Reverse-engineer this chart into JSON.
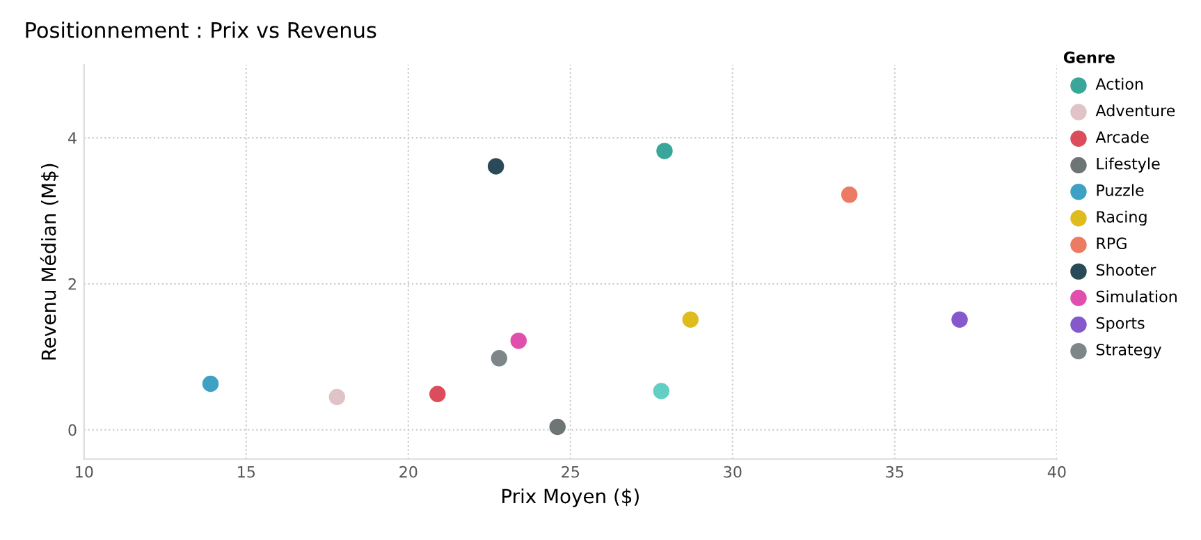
{
  "chart_data": {
    "type": "scatter",
    "title": "Positionnement : Prix vs Revenus",
    "xlabel": "Prix Moyen ($)",
    "ylabel": "Revenu Médian (M$)",
    "legend_title": "Genre",
    "xlim": [
      10,
      40
    ],
    "xticks": [
      10,
      15,
      20,
      25,
      30,
      35,
      40
    ],
    "ylim": [
      -0.4,
      5
    ],
    "yticks": [
      0,
      2,
      4
    ],
    "grid": true,
    "legend": "right",
    "marker": "circle",
    "series": [
      {
        "name": "Action",
        "color": "#3aa69a",
        "x": [
          27.9
        ],
        "values": [
          3.82
        ]
      },
      {
        "name": "Adventure",
        "color": "#e0c3c6",
        "x": [
          17.8
        ],
        "values": [
          0.45
        ]
      },
      {
        "name": "Arcade",
        "color": "#dc4d5c",
        "x": [
          20.9
        ],
        "values": [
          0.49
        ]
      },
      {
        "name": "Lifestyle",
        "color": "#6e7575",
        "x": [
          24.6
        ],
        "values": [
          0.04
        ]
      },
      {
        "name": "Puzzle",
        "color": "#3ea1c4",
        "x": [
          13.9
        ],
        "values": [
          0.63
        ]
      },
      {
        "name": "Racing",
        "color": "#dfbc1e",
        "x": [
          28.7
        ],
        "values": [
          1.51
        ]
      },
      {
        "name": "RPG",
        "color": "#ec7b63",
        "x": [
          33.6
        ],
        "values": [
          3.22
        ]
      },
      {
        "name": "Shooter",
        "color": "#2b4a58",
        "x": [
          22.7
        ],
        "values": [
          3.61
        ]
      },
      {
        "name": "Simulation",
        "color": "#e04fae",
        "x": [
          23.4
        ],
        "values": [
          1.22
        ]
      },
      {
        "name": "Sports",
        "color": "#8559cc",
        "x": [
          37.0
        ],
        "values": [
          1.51
        ]
      },
      {
        "name": "Strategy",
        "color": "#7f868a",
        "x": [
          22.8
        ],
        "values": [
          0.98
        ]
      },
      {
        "color": "#63cfc4",
        "x": [
          27.8
        ],
        "values": [
          0.53
        ]
      }
    ]
  }
}
